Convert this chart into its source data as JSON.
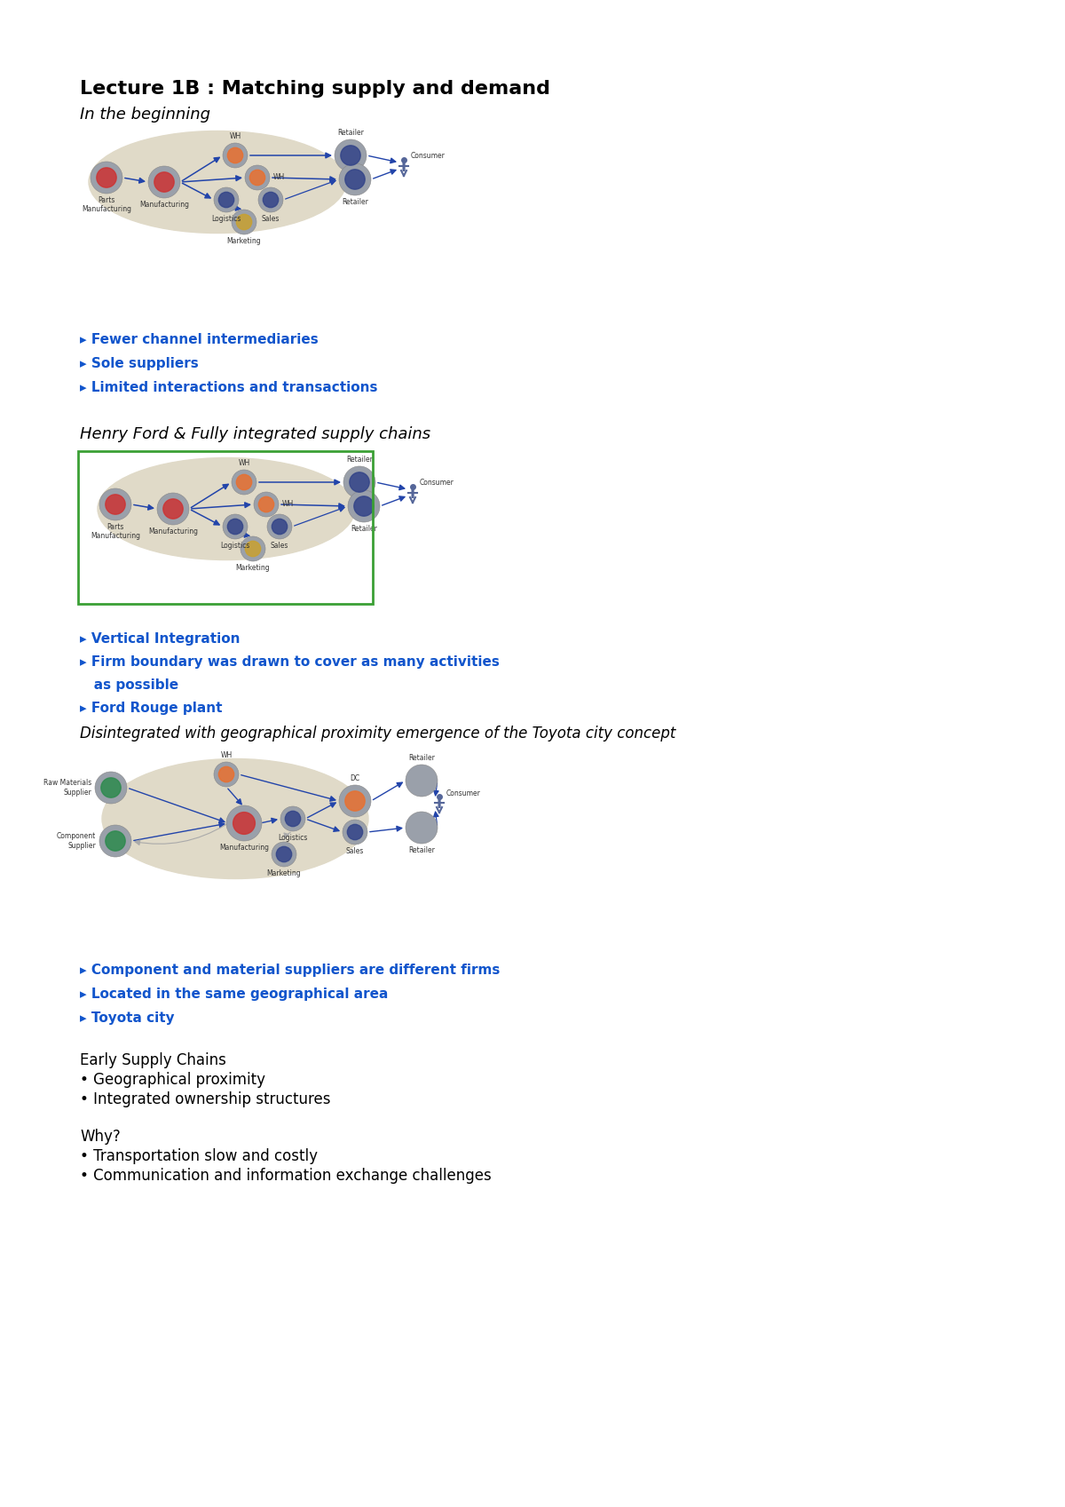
{
  "title": "Lecture 1B : Matching supply and demand",
  "section1_subtitle": "In the beginning",
  "section1_bullets": [
    "▸ Fewer channel intermediaries",
    "▸ Sole suppliers",
    "▸ Limited interactions and transactions"
  ],
  "section2_subtitle": "Henry Ford & Fully integrated supply chains",
  "section2_bullets": [
    "▸ Vertical Integration",
    "▸ Firm boundary was drawn to cover as many activities",
    "   as possible",
    "▸ Ford Rouge plant"
  ],
  "section3_subtitle": "Disintegrated with geographical proximity emergence of the Toyota city concept",
  "section3_bullets": [
    "▸ Component and material suppliers are different firms",
    "▸ Located in the same geographical area",
    "▸ Toyota city"
  ],
  "section4_title": "Early Supply Chains",
  "section4_bullets": [
    "• Geographical proximity",
    "• Integrated ownership structures"
  ],
  "section5_title": "Why?",
  "section5_bullets": [
    "• Transportation slow and costly",
    "• Communication and information exchange challenges"
  ],
  "bg_color": "#ffffff",
  "title_color": "#000000",
  "bullet_blue_color": "#1155CC",
  "italic_color": "#000000",
  "diagram_bg": "#E0DAC8",
  "arrow_color": "#2244AA",
  "green_box_color": "#3BA035",
  "node_gray": "#9AA0AA",
  "node_red": "#CC3333",
  "node_orange": "#E87030",
  "node_blue": "#334488",
  "node_green": "#2D8A4E",
  "node_yellow": "#C8A030"
}
